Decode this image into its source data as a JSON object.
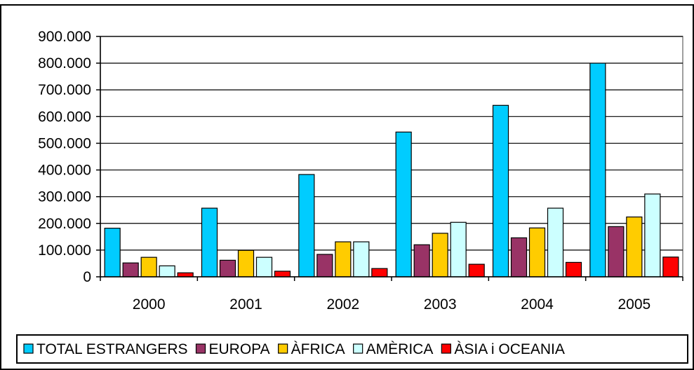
{
  "chart_data": {
    "type": "bar",
    "categories": [
      "2000",
      "2001",
      "2002",
      "2003",
      "2004",
      "2005"
    ],
    "series": [
      {
        "name": "TOTAL ESTRANGERS",
        "color": "#00CCFF",
        "values": [
          182000,
          257000,
          383000,
          542000,
          642000,
          800000
        ]
      },
      {
        "name": "EUROPA",
        "color": "#993366",
        "values": [
          52000,
          62000,
          84000,
          120000,
          146000,
          188000
        ]
      },
      {
        "name": "ÀFRICA",
        "color": "#FFCC00",
        "values": [
          73000,
          99000,
          131000,
          163000,
          183000,
          224000
        ]
      },
      {
        "name": "AMÈRICA",
        "color": "#CCFFFF",
        "values": [
          41000,
          73000,
          131000,
          204000,
          257000,
          310000
        ]
      },
      {
        "name": "ÀSIA i OCEANIA",
        "color": "#FF0000",
        "values": [
          15000,
          21000,
          31000,
          47000,
          54000,
          74000
        ]
      }
    ],
    "yticks": [
      "0",
      "100.000",
      "200.000",
      "300.000",
      "400.000",
      "500.000",
      "600.000",
      "700.000",
      "800.000",
      "900.000"
    ],
    "ylim": [
      0,
      900000
    ],
    "grid": true,
    "legend_position": "bottom"
  }
}
